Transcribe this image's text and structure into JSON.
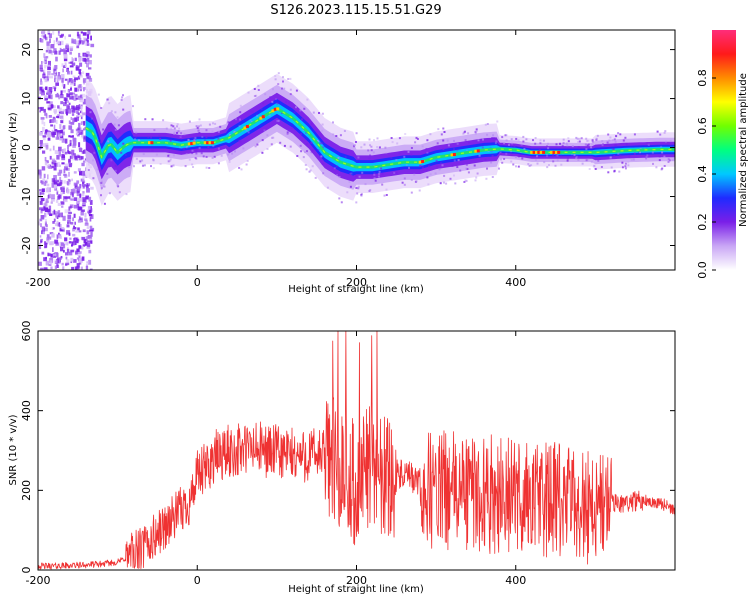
{
  "title": "S126.2023.115.15.51.G29",
  "chart_data": [
    {
      "type": "heatmap",
      "xlabel": "Height of straight line (km)",
      "ylabel": "Frequency (Hz)",
      "xlim": [
        -200,
        600
      ],
      "ylim": [
        -25,
        24
      ],
      "xticks": [
        "-200",
        "0",
        "200",
        "400"
      ],
      "yticks": [
        "20",
        "10",
        "0",
        "-10",
        "-20"
      ],
      "colorbar": {
        "label": "Normalized spectral amplitude",
        "range": [
          0,
          1
        ],
        "ticks": [
          "0.0",
          "0.2",
          "0.4",
          "0.6",
          "0.8"
        ],
        "colors": [
          "#ffffff",
          "#c9a6f5",
          "#7a1fe8",
          "#1f2bff",
          "#00c8ff",
          "#00ff80",
          "#70ff00",
          "#ffff00",
          "#ff8c00",
          "#ff1a1a",
          "#ff2d7a"
        ]
      },
      "ridge": {
        "x": [
          -140,
          -130,
          -120,
          -110,
          -100,
          -90,
          -80,
          -60,
          -40,
          -20,
          0,
          20,
          40,
          60,
          80,
          100,
          120,
          140,
          160,
          180,
          200,
          220,
          240,
          260,
          280,
          300,
          320,
          340,
          360,
          380,
          400,
          420,
          440,
          460,
          480,
          500,
          520,
          540,
          560,
          580,
          595
        ],
        "y": [
          4,
          3,
          -2,
          1,
          -1,
          0.5,
          1,
          1,
          1,
          0.5,
          1,
          1,
          2,
          4,
          6,
          8,
          6,
          3,
          -1,
          -3,
          -4,
          -4,
          -3.5,
          -3,
          -3,
          -2,
          -1.5,
          -1,
          -0.5,
          -0.3,
          -0.5,
          -1,
          -1,
          -1,
          -1,
          -1,
          -0.8,
          -0.6,
          -0.5,
          -0.4,
          -0.4
        ]
      }
    },
    {
      "type": "line",
      "xlabel": "Height of straight line (km)",
      "ylabel": "SNR (10 * v/v)",
      "xlim": [
        -200,
        600
      ],
      "ylim": [
        0,
        600
      ],
      "xticks": [
        "-200",
        "0",
        "200",
        "400"
      ],
      "yticks": [
        "600",
        "400",
        "200",
        "0"
      ],
      "color": "#ef3232",
      "series": [
        {
          "x": [
            -200,
            -180,
            -150,
            -120,
            -100,
            -90,
            -70,
            -50,
            -30,
            -20,
            -10,
            0,
            10,
            20,
            30,
            50,
            70,
            90,
            110,
            130,
            150,
            170,
            180,
            190,
            200,
            210,
            220,
            230,
            240,
            250,
            260,
            270,
            280,
            290,
            300,
            320,
            340,
            360,
            380,
            400,
            420,
            440,
            460,
            480,
            500,
            520,
            540,
            560,
            580,
            600
          ],
          "y": [
            10,
            10,
            12,
            15,
            20,
            30,
            50,
            90,
            130,
            150,
            170,
            230,
            250,
            280,
            290,
            300,
            305,
            300,
            290,
            285,
            290,
            280,
            260,
            230,
            220,
            250,
            270,
            250,
            240,
            240,
            235,
            230,
            215,
            200,
            200,
            200,
            195,
            190,
            190,
            185,
            180,
            175,
            170,
            165,
            160,
            165,
            170,
            175,
            170,
            150
          ]
        }
      ]
    }
  ]
}
